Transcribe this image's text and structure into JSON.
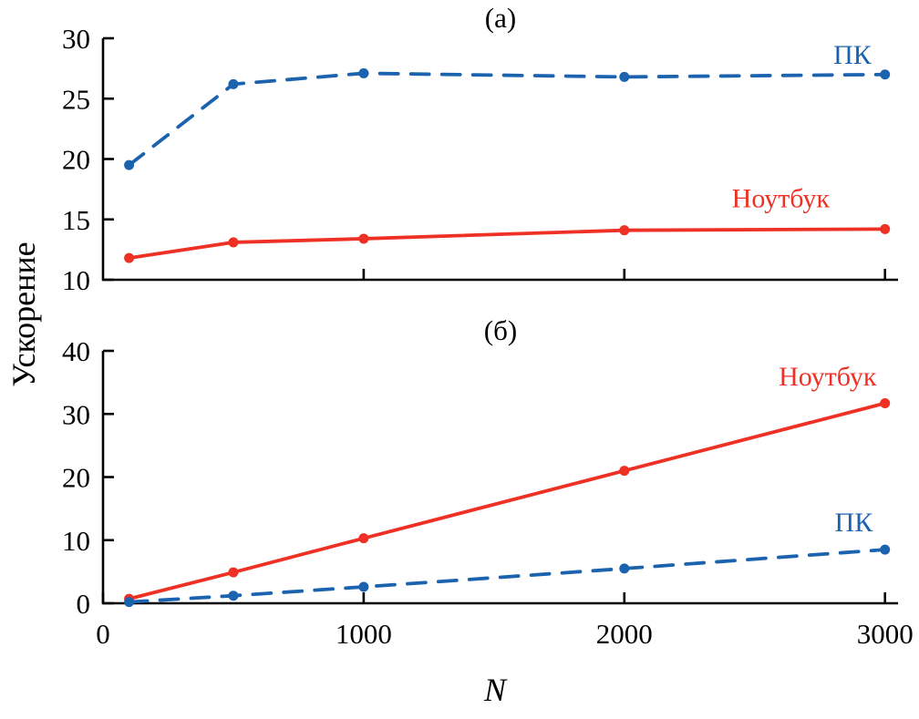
{
  "labels": {
    "ylabel": "Ускорение",
    "xlabel": "N"
  },
  "colors": {
    "axis": "#000000",
    "pc": "#1b63ae",
    "laptop": "#ee3124"
  },
  "chart_data": [
    {
      "type": "line",
      "title": "(а)",
      "x": [
        100,
        500,
        1000,
        2000,
        3000
      ],
      "xlim": [
        0,
        3050
      ],
      "ylim": [
        10,
        30
      ],
      "yticks": [
        10,
        15,
        20,
        25,
        30
      ],
      "xticks": [
        1000,
        2000,
        3000
      ],
      "x_tick_labels": [],
      "grid": false,
      "series": [
        {
          "name": "ПК",
          "color_key": "pc",
          "dashed": true,
          "values": [
            19.5,
            26.2,
            27.1,
            26.8,
            27.0
          ]
        },
        {
          "name": "Ноутбук",
          "color_key": "laptop",
          "dashed": false,
          "values": [
            11.8,
            13.1,
            13.4,
            14.1,
            14.2
          ]
        }
      ],
      "annotations": [
        {
          "text": "ПК",
          "color_key": "pc",
          "x": 2875,
          "y": 27.9
        },
        {
          "text": "Ноутбук",
          "color_key": "laptop",
          "x": 2600,
          "y": 16.0
        }
      ]
    },
    {
      "type": "line",
      "title": "(б)",
      "x": [
        100,
        500,
        1000,
        2000,
        3000
      ],
      "xlim": [
        0,
        3050
      ],
      "ylim": [
        0,
        40
      ],
      "yticks": [
        0,
        10,
        20,
        30,
        40
      ],
      "xticks": [
        0,
        1000,
        2000,
        3000
      ],
      "x_tick_labels": [
        "0",
        "1000",
        "2000",
        "3000"
      ],
      "grid": false,
      "series": [
        {
          "name": "Ноутбук",
          "color_key": "laptop",
          "dashed": false,
          "values": [
            0.7,
            4.9,
            10.3,
            21.0,
            31.7
          ]
        },
        {
          "name": "ПК",
          "color_key": "pc",
          "dashed": true,
          "values": [
            0.2,
            1.2,
            2.6,
            5.5,
            8.5
          ]
        }
      ],
      "annotations": [
        {
          "text": "Ноутбук",
          "color_key": "laptop",
          "x": 2780,
          "y": 34.5
        },
        {
          "text": "ПК",
          "color_key": "pc",
          "x": 2880,
          "y": 11.4
        }
      ]
    }
  ]
}
